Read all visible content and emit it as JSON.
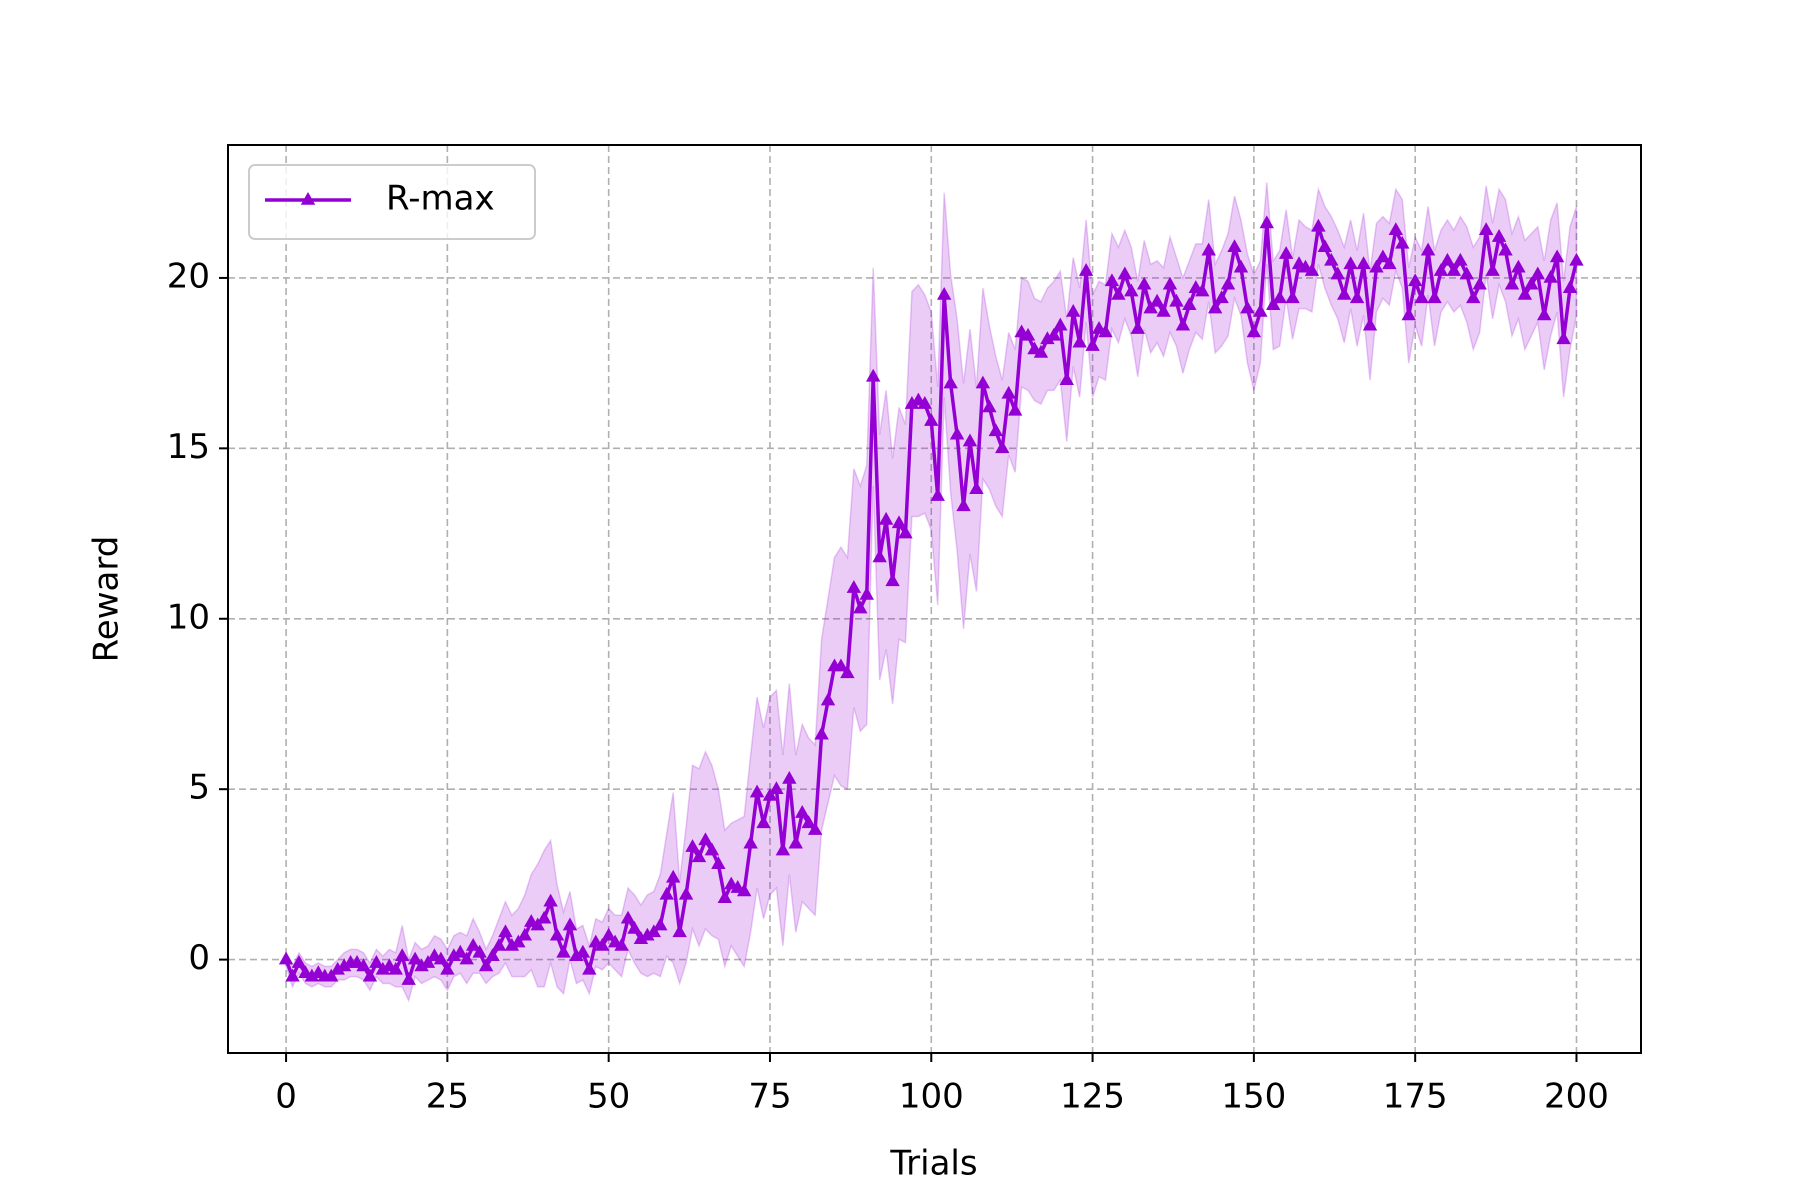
{
  "chart_data": {
    "type": "line",
    "xlabel": "Trials",
    "ylabel": "Reward",
    "xlim": [
      -9,
      210
    ],
    "ylim": [
      -2.74,
      23.9
    ],
    "xticks": [
      0,
      25,
      50,
      75,
      100,
      125,
      150,
      175,
      200
    ],
    "yticks": [
      0,
      5,
      10,
      15,
      20
    ],
    "grid": true,
    "legend": "upper left",
    "x": [
      0,
      1,
      2,
      3,
      4,
      5,
      6,
      7,
      8,
      9,
      10,
      11,
      12,
      13,
      14,
      15,
      16,
      17,
      18,
      19,
      20,
      21,
      22,
      23,
      24,
      25,
      26,
      27,
      28,
      29,
      30,
      31,
      32,
      33,
      34,
      35,
      36,
      37,
      38,
      39,
      40,
      41,
      42,
      43,
      44,
      45,
      46,
      47,
      48,
      49,
      50,
      51,
      52,
      53,
      54,
      55,
      56,
      57,
      58,
      59,
      60,
      61,
      62,
      63,
      64,
      65,
      66,
      67,
      68,
      69,
      70,
      71,
      72,
      73,
      74,
      75,
      76,
      77,
      78,
      79,
      80,
      81,
      82,
      83,
      84,
      85,
      86,
      87,
      88,
      89,
      90,
      91,
      92,
      93,
      94,
      95,
      96,
      97,
      98,
      99,
      100,
      101,
      102,
      103,
      104,
      105,
      106,
      107,
      108,
      109,
      110,
      111,
      112,
      113,
      114,
      115,
      116,
      117,
      118,
      119,
      120,
      121,
      122,
      123,
      124,
      125,
      126,
      127,
      128,
      129,
      130,
      131,
      132,
      133,
      134,
      135,
      136,
      137,
      138,
      139,
      140,
      141,
      142,
      143,
      144,
      145,
      146,
      147,
      148,
      149,
      150,
      151,
      152,
      153,
      154,
      155,
      156,
      157,
      158,
      159,
      160,
      161,
      162,
      163,
      164,
      165,
      166,
      167,
      168,
      169,
      170,
      171,
      172,
      173,
      174,
      175,
      176,
      177,
      178,
      179,
      180,
      181,
      182,
      183,
      184,
      185,
      186,
      187,
      188,
      189,
      190,
      191,
      192,
      193,
      194,
      195,
      196,
      197,
      198,
      199,
      200
    ],
    "series": [
      {
        "name": "R-max",
        "color": "#9400d3",
        "values": [
          0,
          -0.5,
          -0.1,
          -0.4,
          -0.5,
          -0.4,
          -0.5,
          -0.5,
          -0.3,
          -0.2,
          -0.1,
          -0.1,
          -0.2,
          -0.5,
          -0.1,
          -0.3,
          -0.2,
          -0.3,
          0.1,
          -0.6,
          0.0,
          -0.2,
          -0.1,
          0.1,
          0.0,
          -0.3,
          0.1,
          0.2,
          0.0,
          0.4,
          0.2,
          -0.2,
          0.1,
          0.4,
          0.8,
          0.4,
          0.5,
          0.7,
          1.1,
          1.0,
          1.2,
          1.7,
          0.7,
          0.2,
          1.0,
          0.1,
          0.2,
          -0.3,
          0.5,
          0.4,
          0.7,
          0.5,
          0.4,
          1.2,
          0.9,
          0.6,
          0.7,
          0.8,
          1.0,
          1.9,
          2.4,
          0.8,
          1.9,
          3.3,
          3.0,
          3.5,
          3.2,
          2.8,
          1.8,
          2.2,
          2.1,
          2.0,
          3.4,
          4.9,
          4.0,
          4.8,
          5.0,
          3.2,
          5.3,
          3.4,
          4.3,
          4.0,
          3.8,
          6.6,
          7.6,
          8.6,
          8.6,
          8.4,
          10.9,
          10.3,
          10.7,
          17.1,
          11.8,
          12.9,
          11.1,
          12.8,
          12.5,
          16.3,
          16.4,
          16.3,
          15.8,
          13.6,
          19.5,
          16.9,
          15.4,
          13.3,
          15.2,
          13.8,
          16.9,
          16.2,
          15.5,
          15.0,
          16.6,
          16.1,
          18.4,
          18.3,
          17.9,
          17.8,
          18.2,
          18.3,
          18.6,
          17.0,
          19.0,
          18.1,
          20.2,
          18.0,
          18.5,
          18.4,
          19.9,
          19.5,
          20.1,
          19.6,
          18.5,
          19.8,
          19.1,
          19.3,
          19.0,
          19.8,
          19.3,
          18.6,
          19.2,
          19.7,
          19.6,
          20.8,
          19.1,
          19.4,
          19.8,
          20.9,
          20.3,
          19.1,
          18.4,
          19.0,
          21.6,
          19.2,
          19.4,
          20.7,
          19.4,
          20.4,
          20.3,
          20.2,
          21.5,
          20.9,
          20.5,
          20.1,
          19.5,
          20.4,
          19.4,
          20.4,
          18.6,
          20.3,
          20.6,
          20.4,
          21.4,
          21.0,
          18.9,
          19.9,
          19.4,
          20.8,
          19.4,
          20.2,
          20.5,
          20.2,
          20.5,
          20.1,
          19.4,
          19.8,
          21.4,
          20.2,
          21.2,
          20.8,
          19.8,
          20.3,
          19.5,
          19.8,
          20.1,
          18.9,
          20.0,
          20.6,
          18.2,
          19.7,
          20.5
        ],
        "spread": [
          0.2,
          0.3,
          0.3,
          0.3,
          0.3,
          0.3,
          0.3,
          0.3,
          0.3,
          0.4,
          0.4,
          0.4,
          0.4,
          0.4,
          0.4,
          0.4,
          0.5,
          0.5,
          0.9,
          0.6,
          0.5,
          0.5,
          0.5,
          0.6,
          0.6,
          0.6,
          0.6,
          0.6,
          0.7,
          0.8,
          0.6,
          0.5,
          0.6,
          0.8,
          0.9,
          0.9,
          1.0,
          1.2,
          1.4,
          1.8,
          2.0,
          1.8,
          1.5,
          1.2,
          1.0,
          0.8,
          0.8,
          0.7,
          0.7,
          0.7,
          0.8,
          0.8,
          0.9,
          0.9,
          1.0,
          1.0,
          1.2,
          1.2,
          1.5,
          1.8,
          2.5,
          1.5,
          2.0,
          2.4,
          2.6,
          2.6,
          2.5,
          2.2,
          2.0,
          1.8,
          2.0,
          2.2,
          2.6,
          2.8,
          2.8,
          2.9,
          2.9,
          2.8,
          2.8,
          2.6,
          2.6,
          2.5,
          2.5,
          2.8,
          3.0,
          3.2,
          3.5,
          3.4,
          3.5,
          3.6,
          3.8,
          3.2,
          3.6,
          3.8,
          3.6,
          3.4,
          3.2,
          3.3,
          3.4,
          3.2,
          3.2,
          3.2,
          3.0,
          3.2,
          3.4,
          3.6,
          3.3,
          3.0,
          2.8,
          2.4,
          2.2,
          2.0,
          1.8,
          1.8,
          1.6,
          1.6,
          1.5,
          1.5,
          1.5,
          1.6,
          1.6,
          1.8,
          1.6,
          1.6,
          1.5,
          1.5,
          1.4,
          1.4,
          1.4,
          1.4,
          1.3,
          1.3,
          1.4,
          1.3,
          1.3,
          1.2,
          1.3,
          1.4,
          1.3,
          1.4,
          1.3,
          1.3,
          1.4,
          1.5,
          1.3,
          1.4,
          1.5,
          1.5,
          1.4,
          1.6,
          1.7,
          1.5,
          1.2,
          1.3,
          1.4,
          1.3,
          1.2,
          1.3,
          1.2,
          1.2,
          1.1,
          1.2,
          1.3,
          1.3,
          1.4,
          1.3,
          1.4,
          1.5,
          1.6,
          1.3,
          1.2,
          1.2,
          1.2,
          1.3,
          1.4,
          1.3,
          1.4,
          1.3,
          1.4,
          1.2,
          1.2,
          1.2,
          1.3,
          1.4,
          1.5,
          1.4,
          1.3,
          1.4,
          1.4,
          1.5,
          1.5,
          1.5,
          1.6,
          1.5,
          1.4,
          1.6,
          1.7,
          1.6,
          1.7,
          1.8,
          1.6
        ]
      }
    ]
  }
}
